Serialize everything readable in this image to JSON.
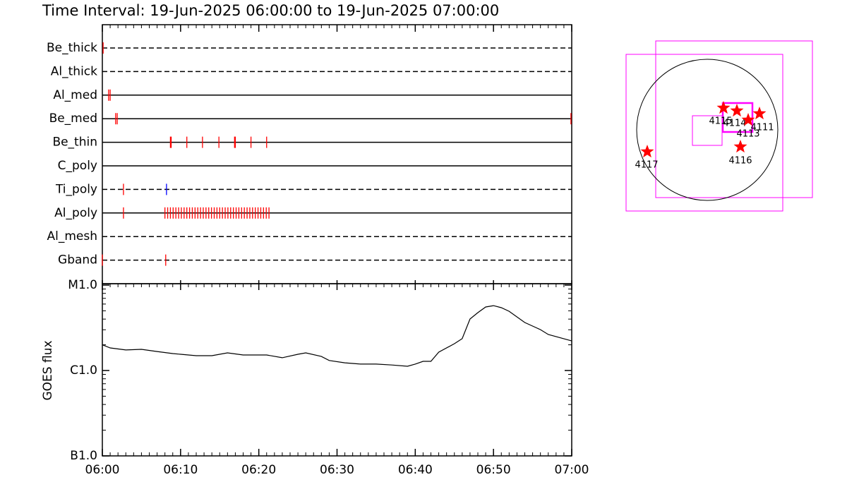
{
  "chart_data": [
    {
      "type": "timeline",
      "title": "Time Interval: 19-Jun-2025 06:00:00 to 19-Jun-2025 07:00:00",
      "xlim": [
        "06:00",
        "07:00"
      ],
      "rows": [
        {
          "name": "Be_thick",
          "line": "dashed",
          "color": "#ff0000",
          "events": [
            "06:00:06"
          ]
        },
        {
          "name": "Al_thick",
          "line": "dashed",
          "color": "#ff0000",
          "events": []
        },
        {
          "name": "Al_med",
          "line": "solid",
          "color": "#ff0000",
          "events": [
            "06:00:48",
            "06:01:00"
          ]
        },
        {
          "name": "Be_med",
          "line": "solid",
          "color": "#ff0000",
          "events": [
            "06:01:42",
            "06:01:54",
            "06:59:54"
          ]
        },
        {
          "name": "Be_thin",
          "line": "solid",
          "color": "#ff0000",
          "events": [
            "06:08:42",
            "06:08:48",
            "06:10:48",
            "06:12:48",
            "06:14:54",
            "06:16:54",
            "06:17:00",
            "06:19:00",
            "06:21:00"
          ]
        },
        {
          "name": "C_poly",
          "line": "solid",
          "color": "#ff0000",
          "events": []
        },
        {
          "name": "Ti_poly",
          "line": "dashed",
          "color": "#ff0000",
          "colors": [
            "#ff0000",
            "#0000ff"
          ],
          "events": [
            "06:02:42",
            "06:08:12"
          ]
        },
        {
          "name": "Al_poly",
          "line": "solid",
          "color": "#ff0000",
          "events": [
            "06:02:42",
            "06:08:00",
            "06:08:21",
            "06:08:42",
            "06:09:03",
            "06:09:24",
            "06:09:45",
            "06:10:06",
            "06:10:27",
            "06:10:48",
            "06:11:09",
            "06:11:30",
            "06:11:51",
            "06:12:12",
            "06:12:33",
            "06:12:54",
            "06:13:15",
            "06:13:36",
            "06:13:57",
            "06:14:18",
            "06:14:39",
            "06:15:00",
            "06:15:21",
            "06:15:42",
            "06:16:03",
            "06:16:24",
            "06:16:45",
            "06:17:06",
            "06:17:27",
            "06:17:48",
            "06:18:09",
            "06:18:30",
            "06:18:51",
            "06:19:12",
            "06:19:33",
            "06:19:54",
            "06:20:15",
            "06:20:36",
            "06:20:57",
            "06:21:18"
          ]
        },
        {
          "name": "Al_mesh",
          "line": "dashed",
          "color": "#ff0000",
          "events": []
        },
        {
          "name": "Gband",
          "line": "dashed",
          "color": "#ff0000",
          "events": [
            "06:00:00",
            "06:08:06"
          ]
        }
      ]
    },
    {
      "type": "line",
      "ylabel": "GOES flux",
      "log": true,
      "color": "#000000",
      "xlim": [
        "06:00",
        "07:00"
      ],
      "xticks": [
        "06:00",
        "06:10",
        "06:20",
        "06:30",
        "06:40",
        "06:50",
        "07:00"
      ],
      "ylim": [
        1e-07,
        1e-05
      ],
      "yticks": [
        {
          "value": 1e-05,
          "label": "M1.0"
        },
        {
          "value": 1e-06,
          "label": "C1.0"
        },
        {
          "value": 1e-07,
          "label": "B1.0"
        }
      ],
      "x": [
        "06:00",
        "06:01",
        "06:03",
        "06:05",
        "06:07",
        "06:09",
        "06:10",
        "06:12",
        "06:14",
        "06:16",
        "06:18",
        "06:19",
        "06:21",
        "06:23",
        "06:25",
        "06:26",
        "06:28",
        "06:29",
        "06:31",
        "06:33",
        "06:35",
        "06:37",
        "06:39",
        "06:40",
        "06:41",
        "06:42",
        "06:43",
        "06:45",
        "06:46",
        "06:47",
        "06:48",
        "06:49",
        "06:50",
        "06:51",
        "06:52",
        "06:54",
        "06:56",
        "06:57",
        "07:00"
      ],
      "values": [
        2e-06,
        1.84e-06,
        1.74e-06,
        1.77e-06,
        1.67e-06,
        1.58e-06,
        1.55e-06,
        1.49e-06,
        1.49e-06,
        1.61e-06,
        1.52e-06,
        1.52e-06,
        1.52e-06,
        1.41e-06,
        1.55e-06,
        1.61e-06,
        1.46e-06,
        1.31e-06,
        1.23e-06,
        1.19e-06,
        1.19e-06,
        1.16e-06,
        1.12e-06,
        1.19e-06,
        1.28e-06,
        1.28e-06,
        1.64e-06,
        2.06e-06,
        2.36e-06,
        4.01e-06,
        4.76e-06,
        5.54e-06,
        5.75e-06,
        5.44e-06,
        4.94e-06,
        3.65e-06,
        3.01e-06,
        2.64e-06,
        2.22e-06
      ]
    },
    {
      "type": "map",
      "star_color": "#ff0000",
      "box_color": "#ff00ff",
      "regions": [
        "4115",
        "4114",
        "4113",
        "4111",
        "4116",
        "4117"
      ]
    }
  ]
}
